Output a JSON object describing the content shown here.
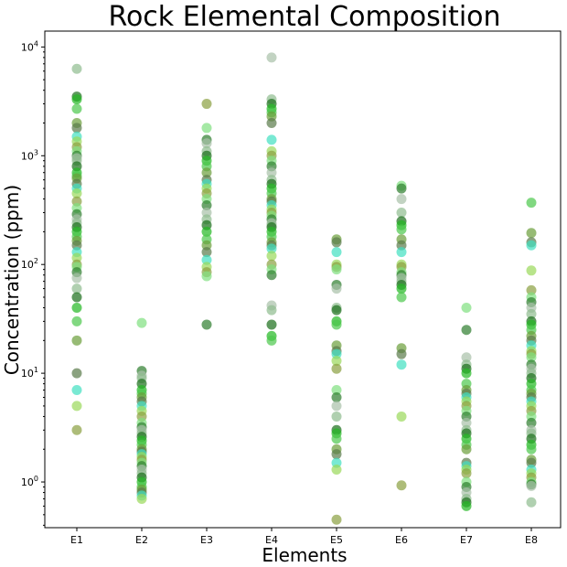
{
  "chart_data": {
    "type": "scatter",
    "title": "Rock Elemental Composition",
    "xlabel": "Elements",
    "ylabel": "Concentration (ppm)",
    "categories": [
      "E1",
      "E2",
      "E3",
      "E4",
      "E5",
      "E6",
      "E7",
      "E8"
    ],
    "y_scale": "log",
    "ylim": [
      0.38,
      14000
    ],
    "y_ticks": [
      {
        "value": 1,
        "base": "10",
        "exp": "0"
      },
      {
        "value": 10,
        "base": "10",
        "exp": "1"
      },
      {
        "value": 100,
        "base": "10",
        "exp": "2"
      },
      {
        "value": 1000,
        "base": "10",
        "exp": "3"
      },
      {
        "value": 10000,
        "base": "10",
        "exp": "4"
      }
    ],
    "grid": false,
    "legend": "none",
    "palette": [
      "#4cc74c",
      "#2e7d2e",
      "#5a7a4a",
      "#8fbc8f",
      "#9ad95a",
      "#22b822",
      "#7fe07f",
      "#6b9e3a",
      "#a8c0a8",
      "#40e0c0",
      "#1a6e1a",
      "#8aa040"
    ],
    "series": [
      {
        "category": "E1",
        "values": [
          6300,
          3500,
          3300,
          2700,
          2000,
          1800,
          1500,
          1350,
          1200,
          1100,
          1000,
          950,
          900,
          800,
          700,
          650,
          620,
          550,
          500,
          450,
          380,
          330,
          290,
          260,
          240,
          220,
          200,
          180,
          165,
          150,
          130,
          115,
          100,
          95,
          85,
          75,
          60,
          50,
          40,
          30,
          20,
          10,
          7,
          5,
          3
        ]
      },
      {
        "category": "E2",
        "values": [
          29,
          10.5,
          9.5,
          9,
          8,
          7,
          6.5,
          6,
          5.5,
          5,
          4.5,
          4,
          3.5,
          3.2,
          3,
          2.8,
          2.6,
          2.4,
          2.2,
          2,
          1.9,
          1.8,
          1.7,
          1.6,
          1.5,
          1.4,
          1.3,
          1.2,
          1.1,
          1,
          0.9,
          0.85,
          0.8,
          0.75,
          0.7
        ]
      },
      {
        "category": "E3",
        "values": [
          3000,
          1800,
          1400,
          1300,
          1100,
          1000,
          900,
          800,
          700,
          600,
          550,
          500,
          450,
          400,
          350,
          300,
          260,
          230,
          200,
          170,
          150,
          130,
          110,
          95,
          85,
          78,
          28
        ]
      },
      {
        "category": "E4",
        "values": [
          8000,
          3300,
          3000,
          2700,
          2500,
          2300,
          2000,
          1400,
          1100,
          1000,
          900,
          800,
          700,
          600,
          550,
          500,
          450,
          400,
          380,
          350,
          320,
          300,
          280,
          260,
          240,
          230,
          220,
          200,
          180,
          160,
          150,
          140,
          120,
          100,
          90,
          80,
          42,
          38,
          28,
          22,
          20
        ]
      },
      {
        "category": "E5",
        "values": [
          170,
          160,
          130,
          100,
          95,
          90,
          65,
          60,
          40,
          38,
          30,
          28,
          18,
          16,
          15,
          13,
          11,
          7,
          6,
          5,
          4,
          3,
          2.8,
          2.5,
          2,
          1.8,
          1.5,
          1.3,
          0.45
        ]
      },
      {
        "category": "E6",
        "values": [
          530,
          500,
          400,
          300,
          250,
          230,
          210,
          170,
          150,
          130,
          100,
          95,
          85,
          80,
          75,
          70,
          65,
          60,
          50,
          17,
          15,
          12,
          4,
          0.93
        ]
      },
      {
        "category": "E7",
        "values": [
          40,
          25,
          14,
          12,
          11,
          10,
          8,
          7,
          6.5,
          6,
          5.5,
          5,
          4.5,
          4,
          3.5,
          3,
          2.8,
          2.5,
          2.2,
          2,
          1.5,
          1.4,
          1.3,
          1.2,
          1,
          0.9,
          0.8,
          0.7,
          0.65,
          0.6
        ]
      },
      {
        "category": "E8",
        "values": [
          370,
          195,
          160,
          150,
          88,
          58,
          50,
          45,
          40,
          35,
          30,
          28,
          25,
          22,
          20,
          18,
          16,
          15,
          14,
          12,
          11,
          10,
          9,
          8,
          7,
          6.5,
          6,
          5.5,
          5,
          4.5,
          4,
          3.5,
          3,
          2.8,
          2.5,
          2.2,
          2,
          1.6,
          1.5,
          1.3,
          1.2,
          1.1,
          1,
          0.95,
          0.92,
          0.65
        ]
      }
    ]
  }
}
